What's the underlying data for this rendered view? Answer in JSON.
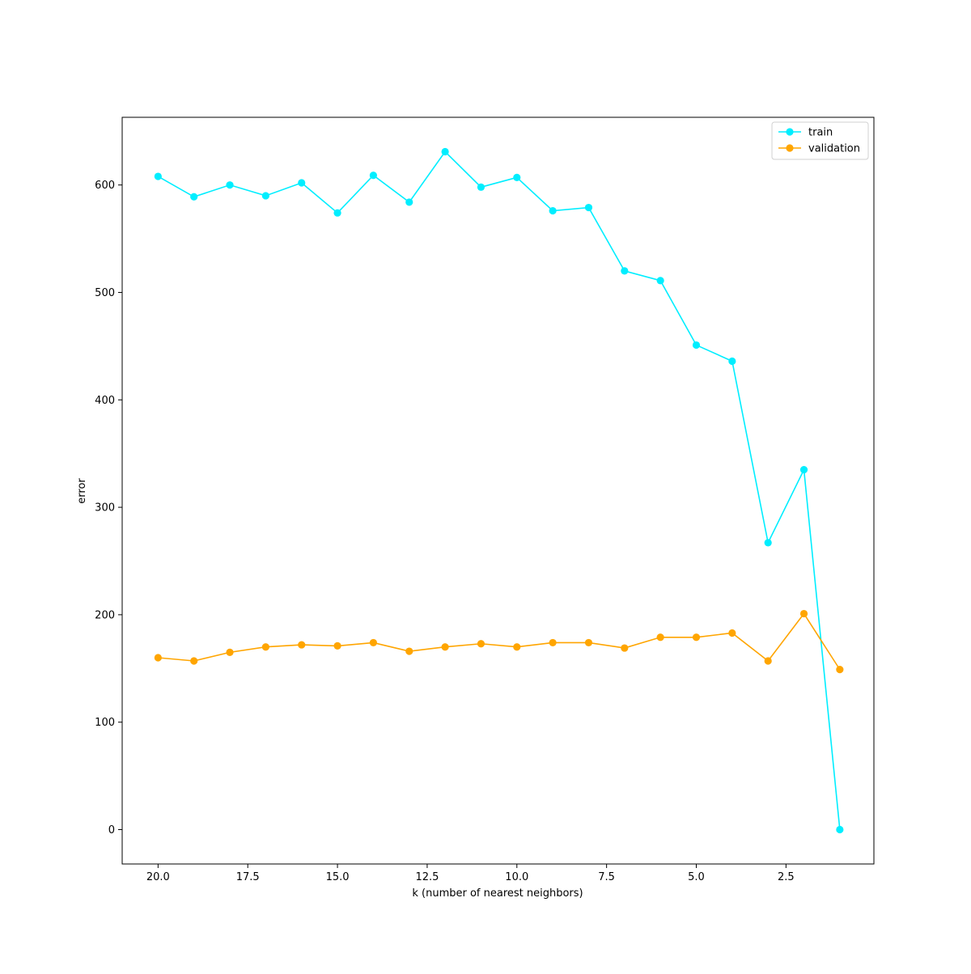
{
  "chart_data": {
    "type": "line",
    "title": "",
    "xlabel": "k (number of nearest neighbors)",
    "ylabel": "error",
    "x": [
      20,
      19,
      18,
      17,
      16,
      15,
      14,
      13,
      12,
      11,
      10,
      9,
      8,
      7,
      6,
      5,
      4,
      3,
      2,
      1
    ],
    "xlim": [
      21,
      0.05
    ],
    "ylim": [
      -32,
      663
    ],
    "xticks": [
      20.0,
      17.5,
      15.0,
      12.5,
      10.0,
      7.5,
      5.0,
      2.5
    ],
    "xtick_labels": [
      "20.0",
      "17.5",
      "15.0",
      "12.5",
      "10.0",
      "7.5",
      "5.0",
      "2.5"
    ],
    "yticks": [
      0,
      100,
      200,
      300,
      400,
      500,
      600
    ],
    "ytick_labels": [
      "0",
      "100",
      "200",
      "300",
      "400",
      "500",
      "600"
    ],
    "grid": false,
    "legend_position": "top-right",
    "series": [
      {
        "name": "train",
        "color": "#00eeff",
        "values": [
          608,
          589,
          600,
          590,
          602,
          574,
          609,
          584,
          631,
          598,
          607,
          576,
          579,
          520,
          511,
          451,
          436,
          267,
          335,
          0
        ]
      },
      {
        "name": "validation",
        "color": "#ffa500",
        "values": [
          160,
          157,
          165,
          170,
          172,
          171,
          174,
          166,
          170,
          173,
          170,
          174,
          174,
          169,
          179,
          179,
          183,
          157,
          201,
          149
        ]
      }
    ]
  }
}
